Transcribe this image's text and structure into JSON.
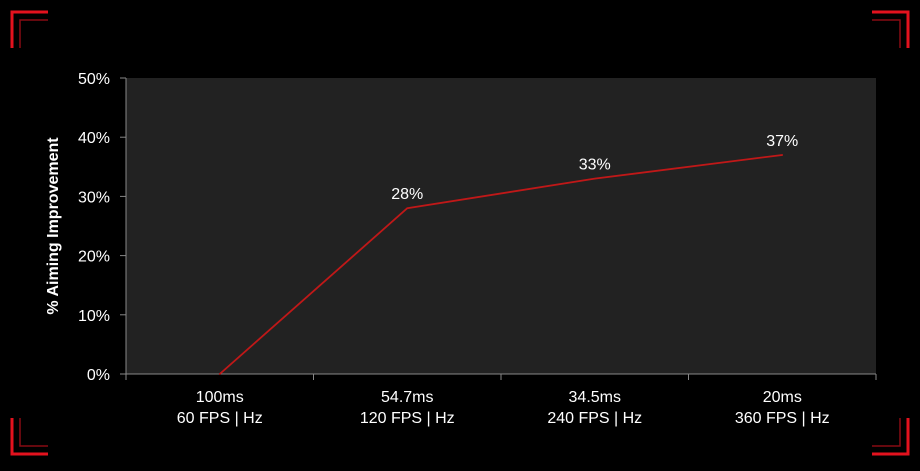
{
  "colors": {
    "background": "#000000",
    "plot_area": "#222222",
    "axis": "#888888",
    "series": "#c01818",
    "text": "#ffffff",
    "corner_accent": "#e3121e"
  },
  "chart_data": {
    "type": "line",
    "categories": [
      [
        "100ms",
        "60 FPS | Hz"
      ],
      [
        "54.7ms",
        "120 FPS | Hz"
      ],
      [
        "34.5ms",
        "240 FPS | Hz"
      ],
      [
        "20ms",
        "360 FPS | Hz"
      ]
    ],
    "series": [
      {
        "values": [
          0,
          28,
          33,
          37
        ],
        "data_labels": [
          "",
          "28%",
          "33%",
          "37%"
        ]
      }
    ],
    "ylabel": "% Aiming Improvement",
    "xlabel": "",
    "ylim": [
      0,
      50
    ],
    "y_ticks": [
      {
        "value": 0,
        "label": "0%"
      },
      {
        "value": 10,
        "label": "10%"
      },
      {
        "value": 20,
        "label": "20%"
      },
      {
        "value": 30,
        "label": "30%"
      },
      {
        "value": 40,
        "label": "40%"
      },
      {
        "value": 50,
        "label": "50%"
      }
    ],
    "grid": false,
    "legend": "none"
  }
}
